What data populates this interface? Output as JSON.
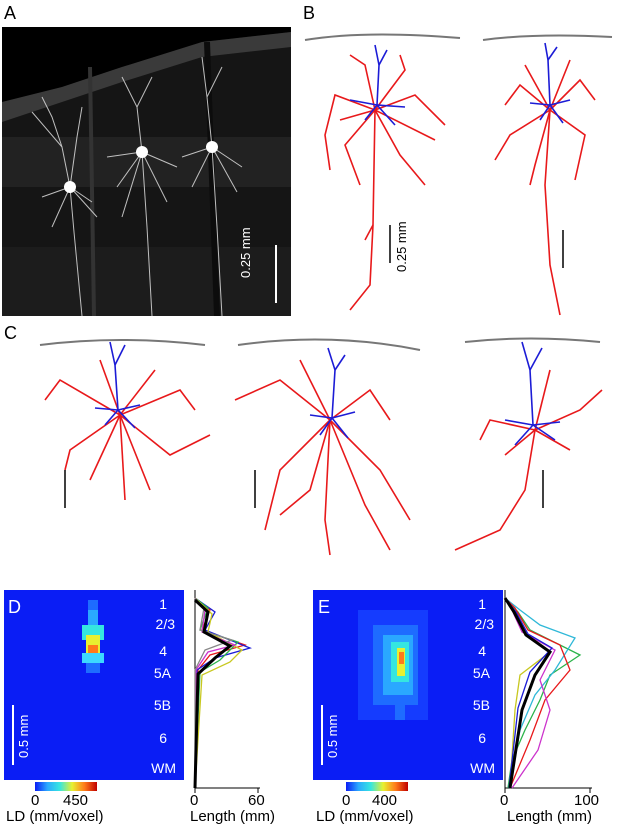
{
  "panels": {
    "A": {
      "letter": "A",
      "scale_label": "0.25 mm"
    },
    "B": {
      "letter": "B",
      "scale_label": "0.25 mm"
    },
    "C": {
      "letter": "C"
    },
    "D": {
      "letter": "D",
      "scale_label": "0.5 mm",
      "layers": [
        "1",
        "2/3",
        "4",
        "5A",
        "5B",
        "6",
        "WM"
      ],
      "colorbar": {
        "min": "0",
        "max": "450",
        "label": "LD (mm/voxel)"
      },
      "profile_axis": {
        "ticks": [
          "0",
          "60"
        ],
        "label": "Length (mm)"
      }
    },
    "E": {
      "letter": "E",
      "scale_label": "0.5 mm",
      "layers": [
        "1",
        "2/3",
        "4",
        "5A",
        "5B",
        "6",
        "WM"
      ],
      "colorbar": {
        "min": "0",
        "max": "400",
        "label": "LD (mm/voxel)"
      },
      "profile_axis": {
        "ticks": [
          "0",
          "100"
        ],
        "label": "Length (mm)"
      }
    }
  },
  "colors": {
    "axon": "#e8191b",
    "dendrite": "#1c1cd6",
    "pia": "#777777",
    "heatmap_bg": "#0a1df5"
  }
}
